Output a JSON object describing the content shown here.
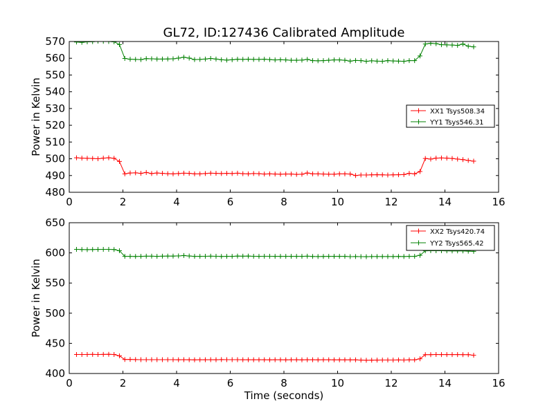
{
  "figure": {
    "title": "GL72, ID:127436 Calibrated Amplitude",
    "xlabel": "Time (seconds)"
  },
  "chart_data": [
    {
      "type": "line",
      "ylabel": "Power in Kelvin",
      "xlim": [
        0,
        16
      ],
      "ylim": [
        480,
        570
      ],
      "xticks": [
        "0",
        "2",
        "4",
        "6",
        "8",
        "10",
        "12",
        "14",
        "16"
      ],
      "yticks": [
        "480",
        "490",
        "500",
        "510",
        "520",
        "530",
        "540",
        "550",
        "560",
        "570"
      ],
      "legend_position": "right",
      "x": [
        0.27,
        0.47,
        0.67,
        0.87,
        1.07,
        1.27,
        1.47,
        1.67,
        1.87,
        2.07,
        2.27,
        2.47,
        2.67,
        2.87,
        3.07,
        3.27,
        3.47,
        3.67,
        3.87,
        4.07,
        4.27,
        4.47,
        4.67,
        4.87,
        5.07,
        5.27,
        5.47,
        5.67,
        5.87,
        6.07,
        6.27,
        6.47,
        6.67,
        6.87,
        7.07,
        7.27,
        7.47,
        7.67,
        7.87,
        8.07,
        8.27,
        8.47,
        8.67,
        8.87,
        9.07,
        9.27,
        9.47,
        9.67,
        9.87,
        10.07,
        10.27,
        10.47,
        10.67,
        10.87,
        11.07,
        11.27,
        11.47,
        11.67,
        11.87,
        12.07,
        12.27,
        12.47,
        12.67,
        12.87,
        13.07,
        13.27,
        13.47,
        13.67,
        13.87,
        14.07,
        14.27,
        14.47,
        14.67,
        14.87,
        15.07
      ],
      "series": [
        {
          "name": "XX1 Tsys508.34",
          "color": "#ff0000",
          "values": [
            500.6,
            500.4,
            500.3,
            500.2,
            500.0,
            500.4,
            500.6,
            500.3,
            498.4,
            491.0,
            491.5,
            491.6,
            491.3,
            491.8,
            491.2,
            491.5,
            491.3,
            491.1,
            491.0,
            491.2,
            491.4,
            491.3,
            491.0,
            491.0,
            491.2,
            491.4,
            491.3,
            491.2,
            491.3,
            491.2,
            491.4,
            491.1,
            491.0,
            491.2,
            491.1,
            490.9,
            491.0,
            490.9,
            490.8,
            490.9,
            490.9,
            490.7,
            490.8,
            491.5,
            491.0,
            491.0,
            490.9,
            490.8,
            490.8,
            491.0,
            491.0,
            490.9,
            490.0,
            490.3,
            490.3,
            490.4,
            490.5,
            490.4,
            490.3,
            490.4,
            490.5,
            490.6,
            491.3,
            491.0,
            492.4,
            500.2,
            499.8,
            500.4,
            500.5,
            500.4,
            500.2,
            499.8,
            499.5,
            499.0,
            498.6
          ]
        },
        {
          "name": "YY1 Tsys546.31",
          "color": "#008000",
          "values": [
            569.7,
            569.5,
            569.8,
            569.9,
            570.2,
            570.1,
            570.0,
            569.8,
            568.2,
            559.9,
            559.4,
            559.3,
            559.2,
            559.8,
            559.7,
            559.5,
            559.5,
            559.6,
            559.7,
            560.1,
            560.6,
            560.1,
            559.2,
            559.3,
            559.5,
            559.9,
            559.5,
            559.1,
            558.9,
            559.1,
            559.4,
            559.3,
            559.4,
            559.3,
            559.3,
            559.4,
            559.2,
            559.0,
            559.1,
            559.0,
            558.8,
            558.8,
            558.9,
            559.3,
            558.6,
            558.5,
            558.6,
            558.8,
            559.0,
            559.0,
            558.8,
            558.3,
            558.7,
            558.6,
            558.2,
            558.5,
            558.3,
            558.2,
            558.6,
            558.4,
            558.3,
            558.2,
            558.6,
            558.6,
            561.4,
            568.5,
            568.9,
            568.7,
            568.1,
            568.0,
            567.9,
            567.7,
            568.5,
            567.2,
            566.8
          ]
        }
      ]
    },
    {
      "type": "line",
      "ylabel": "Power in Kelvin",
      "xlabel": "Time (seconds)",
      "xlim": [
        0,
        16
      ],
      "ylim": [
        400,
        650
      ],
      "xticks": [
        "0",
        "2",
        "4",
        "6",
        "8",
        "10",
        "12",
        "14",
        "16"
      ],
      "yticks": [
        "400",
        "450",
        "500",
        "550",
        "600",
        "650"
      ],
      "legend_position": "top-right",
      "x": [
        0.27,
        0.47,
        0.67,
        0.87,
        1.07,
        1.27,
        1.47,
        1.67,
        1.87,
        2.07,
        2.27,
        2.47,
        2.67,
        2.87,
        3.07,
        3.27,
        3.47,
        3.67,
        3.87,
        4.07,
        4.27,
        4.47,
        4.67,
        4.87,
        5.07,
        5.27,
        5.47,
        5.67,
        5.87,
        6.07,
        6.27,
        6.47,
        6.67,
        6.87,
        7.07,
        7.27,
        7.47,
        7.67,
        7.87,
        8.07,
        8.27,
        8.47,
        8.67,
        8.87,
        9.07,
        9.27,
        9.47,
        9.67,
        9.87,
        10.07,
        10.27,
        10.47,
        10.67,
        10.87,
        11.07,
        11.27,
        11.47,
        11.67,
        11.87,
        12.07,
        12.27,
        12.47,
        12.67,
        12.87,
        13.07,
        13.27,
        13.47,
        13.67,
        13.87,
        14.07,
        14.27,
        14.47,
        14.67,
        14.87,
        15.07
      ],
      "series": [
        {
          "name": "XX2 Tsys420.74",
          "color": "#ff0000",
          "values": [
            431.5,
            431.6,
            431.6,
            431.7,
            431.5,
            431.7,
            431.8,
            431.5,
            429.2,
            423.2,
            423.3,
            423.1,
            422.9,
            423.0,
            422.9,
            422.9,
            423.0,
            422.9,
            422.9,
            422.8,
            422.9,
            422.8,
            422.7,
            422.8,
            422.8,
            422.9,
            422.8,
            423.1,
            422.9,
            422.9,
            423.0,
            422.8,
            422.8,
            422.8,
            422.8,
            422.8,
            422.7,
            422.8,
            422.8,
            422.7,
            422.8,
            422.8,
            422.7,
            422.8,
            422.8,
            422.7,
            422.8,
            422.8,
            422.7,
            422.7,
            422.7,
            422.7,
            422.6,
            422.2,
            422.0,
            422.1,
            422.2,
            422.4,
            422.3,
            422.4,
            422.5,
            422.4,
            422.6,
            422.6,
            424.3,
            431.3,
            431.3,
            431.5,
            431.4,
            431.4,
            431.4,
            431.4,
            431.3,
            431.2,
            430.3
          ]
        },
        {
          "name": "YY2 Tsys565.42",
          "color": "#008000",
          "values": [
            605.9,
            605.5,
            605.4,
            605.5,
            605.7,
            605.8,
            605.8,
            605.6,
            603.5,
            594.3,
            594.2,
            594.1,
            594.2,
            594.5,
            594.5,
            594.3,
            594.5,
            594.6,
            594.7,
            595.0,
            595.6,
            594.8,
            594.2,
            594.3,
            594.4,
            594.5,
            594.4,
            594.1,
            594.2,
            594.3,
            594.6,
            594.5,
            594.6,
            594.4,
            594.2,
            594.4,
            594.4,
            594.3,
            594.3,
            594.2,
            594.2,
            594.3,
            594.2,
            594.5,
            594.1,
            594.0,
            594.1,
            594.2,
            594.2,
            594.3,
            594.2,
            593.8,
            593.9,
            593.8,
            593.7,
            593.9,
            594.0,
            593.9,
            594.0,
            594.0,
            594.1,
            594.0,
            594.2,
            594.2,
            596.0,
            603.4,
            603.7,
            603.6,
            603.5,
            603.4,
            603.3,
            603.2,
            603.3,
            602.9,
            602.6
          ]
        }
      ]
    }
  ]
}
